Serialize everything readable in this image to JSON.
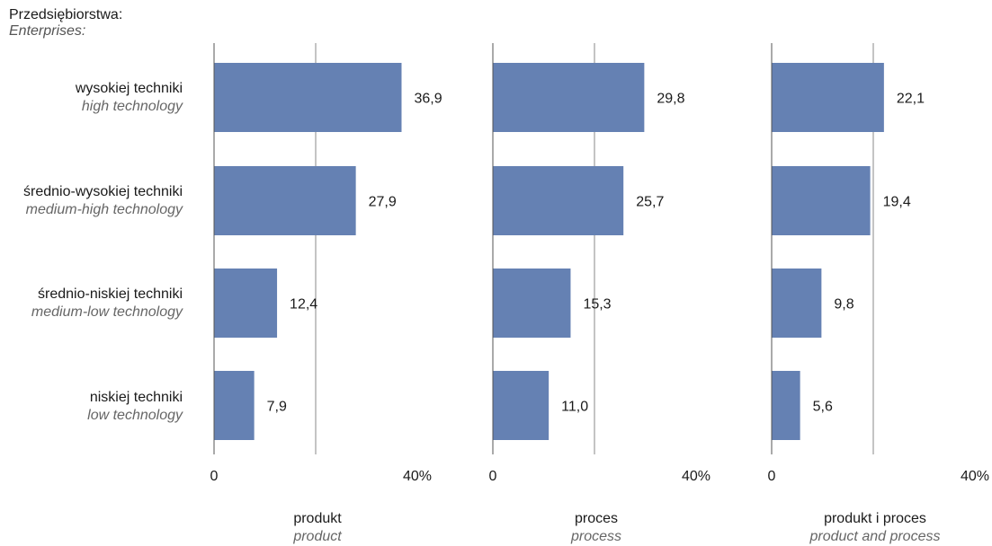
{
  "header": {
    "pl": "Przedsiębiorstwa:",
    "en": "Enterprises:"
  },
  "categories": [
    {
      "pl": "wysokiej techniki",
      "en": "high technology"
    },
    {
      "pl": "średnio-wysokiej techniki",
      "en": "medium-high technology"
    },
    {
      "pl": "średnio-niskiej techniki",
      "en": "medium-low technology"
    },
    {
      "pl": "niskiej techniki",
      "en": "low technology"
    }
  ],
  "colors": {
    "bar": "#6581b3",
    "axis": "#555555"
  },
  "chart_data": [
    {
      "type": "bar",
      "orientation": "horizontal",
      "title": "produkt",
      "subtitle": "product",
      "categories": [
        "wysokiej techniki",
        "średnio-wysokiej techniki",
        "średnio-niskiej techniki",
        "niskiej techniki"
      ],
      "values": [
        36.9,
        27.9,
        12.4,
        7.9
      ],
      "labels": [
        "36,9",
        "27,9",
        "12,4",
        "7,9"
      ],
      "xlim": [
        0,
        40
      ],
      "tick_labels": [
        "0",
        "40%"
      ],
      "grid": true
    },
    {
      "type": "bar",
      "orientation": "horizontal",
      "title": "proces",
      "subtitle": "process",
      "categories": [
        "wysokiej techniki",
        "średnio-wysokiej techniki",
        "średnio-niskiej techniki",
        "niskiej techniki"
      ],
      "values": [
        29.8,
        25.7,
        15.3,
        11.0
      ],
      "labels": [
        "29,8",
        "25,7",
        "15,3",
        "11,0"
      ],
      "xlim": [
        0,
        40
      ],
      "tick_labels": [
        "0",
        "40%"
      ],
      "grid": true
    },
    {
      "type": "bar",
      "orientation": "horizontal",
      "title": "produkt i proces",
      "subtitle": "product and process",
      "categories": [
        "wysokiej techniki",
        "średnio-wysokiej techniki",
        "średnio-niskiej techniki",
        "niskiej techniki"
      ],
      "values": [
        22.1,
        19.4,
        9.8,
        5.6
      ],
      "labels": [
        "22,1",
        "19,4",
        "9,8",
        "5,6"
      ],
      "xlim": [
        0,
        40
      ],
      "tick_labels": [
        "0",
        "40%"
      ],
      "grid": true
    }
  ]
}
